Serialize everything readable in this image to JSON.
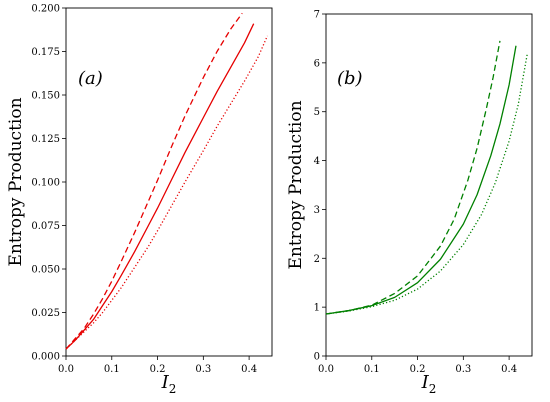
{
  "chart_data": [
    {
      "type": "line",
      "panel_label": "(a)",
      "xlabel_main": "I",
      "xlabel_sub": "2",
      "ylabel": "Entropy Production",
      "xlim": [
        0.0,
        0.45
      ],
      "ylim": [
        0.0,
        0.2
      ],
      "xticks": [
        "0.0",
        "0.1",
        "0.2",
        "0.3",
        "0.4"
      ],
      "xtick_values": [
        0.0,
        0.1,
        0.2,
        0.3,
        0.4
      ],
      "yticks": [
        "0.000",
        "0.025",
        "0.050",
        "0.075",
        "0.100",
        "0.125",
        "0.150",
        "0.175",
        "0.200"
      ],
      "ytick_values": [
        0.0,
        0.025,
        0.05,
        0.075,
        0.1,
        0.125,
        0.15,
        0.175,
        0.2
      ],
      "color": "#e60000",
      "series": [
        {
          "style": "dashed",
          "x": [
            0.0,
            0.02,
            0.04,
            0.06,
            0.08,
            0.1,
            0.12,
            0.15,
            0.18,
            0.2,
            0.23,
            0.26,
            0.3,
            0.33,
            0.36,
            0.385
          ],
          "y": [
            0.004,
            0.01,
            0.016,
            0.024,
            0.033,
            0.043,
            0.054,
            0.071,
            0.089,
            0.101,
            0.12,
            0.138,
            0.16,
            0.175,
            0.188,
            0.197
          ]
        },
        {
          "style": "solid",
          "x": [
            0.0,
            0.02,
            0.04,
            0.06,
            0.08,
            0.1,
            0.12,
            0.15,
            0.18,
            0.2,
            0.23,
            0.26,
            0.3,
            0.33,
            0.36,
            0.39,
            0.41
          ],
          "y": [
            0.004,
            0.009,
            0.015,
            0.021,
            0.029,
            0.037,
            0.046,
            0.06,
            0.075,
            0.085,
            0.101,
            0.117,
            0.137,
            0.152,
            0.166,
            0.18,
            0.191
          ]
        },
        {
          "style": "dotted",
          "x": [
            0.0,
            0.02,
            0.04,
            0.06,
            0.08,
            0.1,
            0.12,
            0.15,
            0.18,
            0.2,
            0.23,
            0.26,
            0.3,
            0.33,
            0.36,
            0.39,
            0.42,
            0.44
          ],
          "y": [
            0.004,
            0.009,
            0.014,
            0.019,
            0.025,
            0.032,
            0.039,
            0.051,
            0.063,
            0.072,
            0.086,
            0.1,
            0.118,
            0.132,
            0.145,
            0.158,
            0.172,
            0.184
          ]
        }
      ]
    },
    {
      "type": "line",
      "panel_label": "(b)",
      "xlabel_main": "I",
      "xlabel_sub": "2",
      "ylabel": "Entropy Production",
      "xlim": [
        0.0,
        0.45
      ],
      "ylim": [
        0,
        7
      ],
      "xticks": [
        "0.0",
        "0.1",
        "0.2",
        "0.3",
        "0.4"
      ],
      "xtick_values": [
        0.0,
        0.1,
        0.2,
        0.3,
        0.4
      ],
      "yticks": [
        "0",
        "1",
        "2",
        "3",
        "4",
        "5",
        "6",
        "7"
      ],
      "ytick_values": [
        0,
        1,
        2,
        3,
        4,
        5,
        6,
        7
      ],
      "color": "#008000",
      "series": [
        {
          "style": "dashed",
          "x": [
            0.0,
            0.05,
            0.1,
            0.15,
            0.2,
            0.25,
            0.28,
            0.31,
            0.33,
            0.35,
            0.365,
            0.38
          ],
          "y": [
            0.86,
            0.93,
            1.04,
            1.28,
            1.64,
            2.25,
            2.8,
            3.6,
            4.25,
            5.05,
            5.7,
            6.45
          ]
        },
        {
          "style": "solid",
          "x": [
            0.0,
            0.05,
            0.1,
            0.15,
            0.2,
            0.25,
            0.3,
            0.33,
            0.36,
            0.38,
            0.4,
            0.415
          ],
          "y": [
            0.86,
            0.93,
            1.03,
            1.2,
            1.5,
            1.98,
            2.7,
            3.3,
            4.1,
            4.75,
            5.55,
            6.35
          ]
        },
        {
          "style": "dotted",
          "x": [
            0.0,
            0.05,
            0.1,
            0.15,
            0.2,
            0.25,
            0.3,
            0.34,
            0.37,
            0.4,
            0.42,
            0.44
          ],
          "y": [
            0.86,
            0.92,
            1.01,
            1.14,
            1.37,
            1.74,
            2.28,
            2.9,
            3.55,
            4.4,
            5.15,
            6.2
          ]
        }
      ]
    }
  ]
}
